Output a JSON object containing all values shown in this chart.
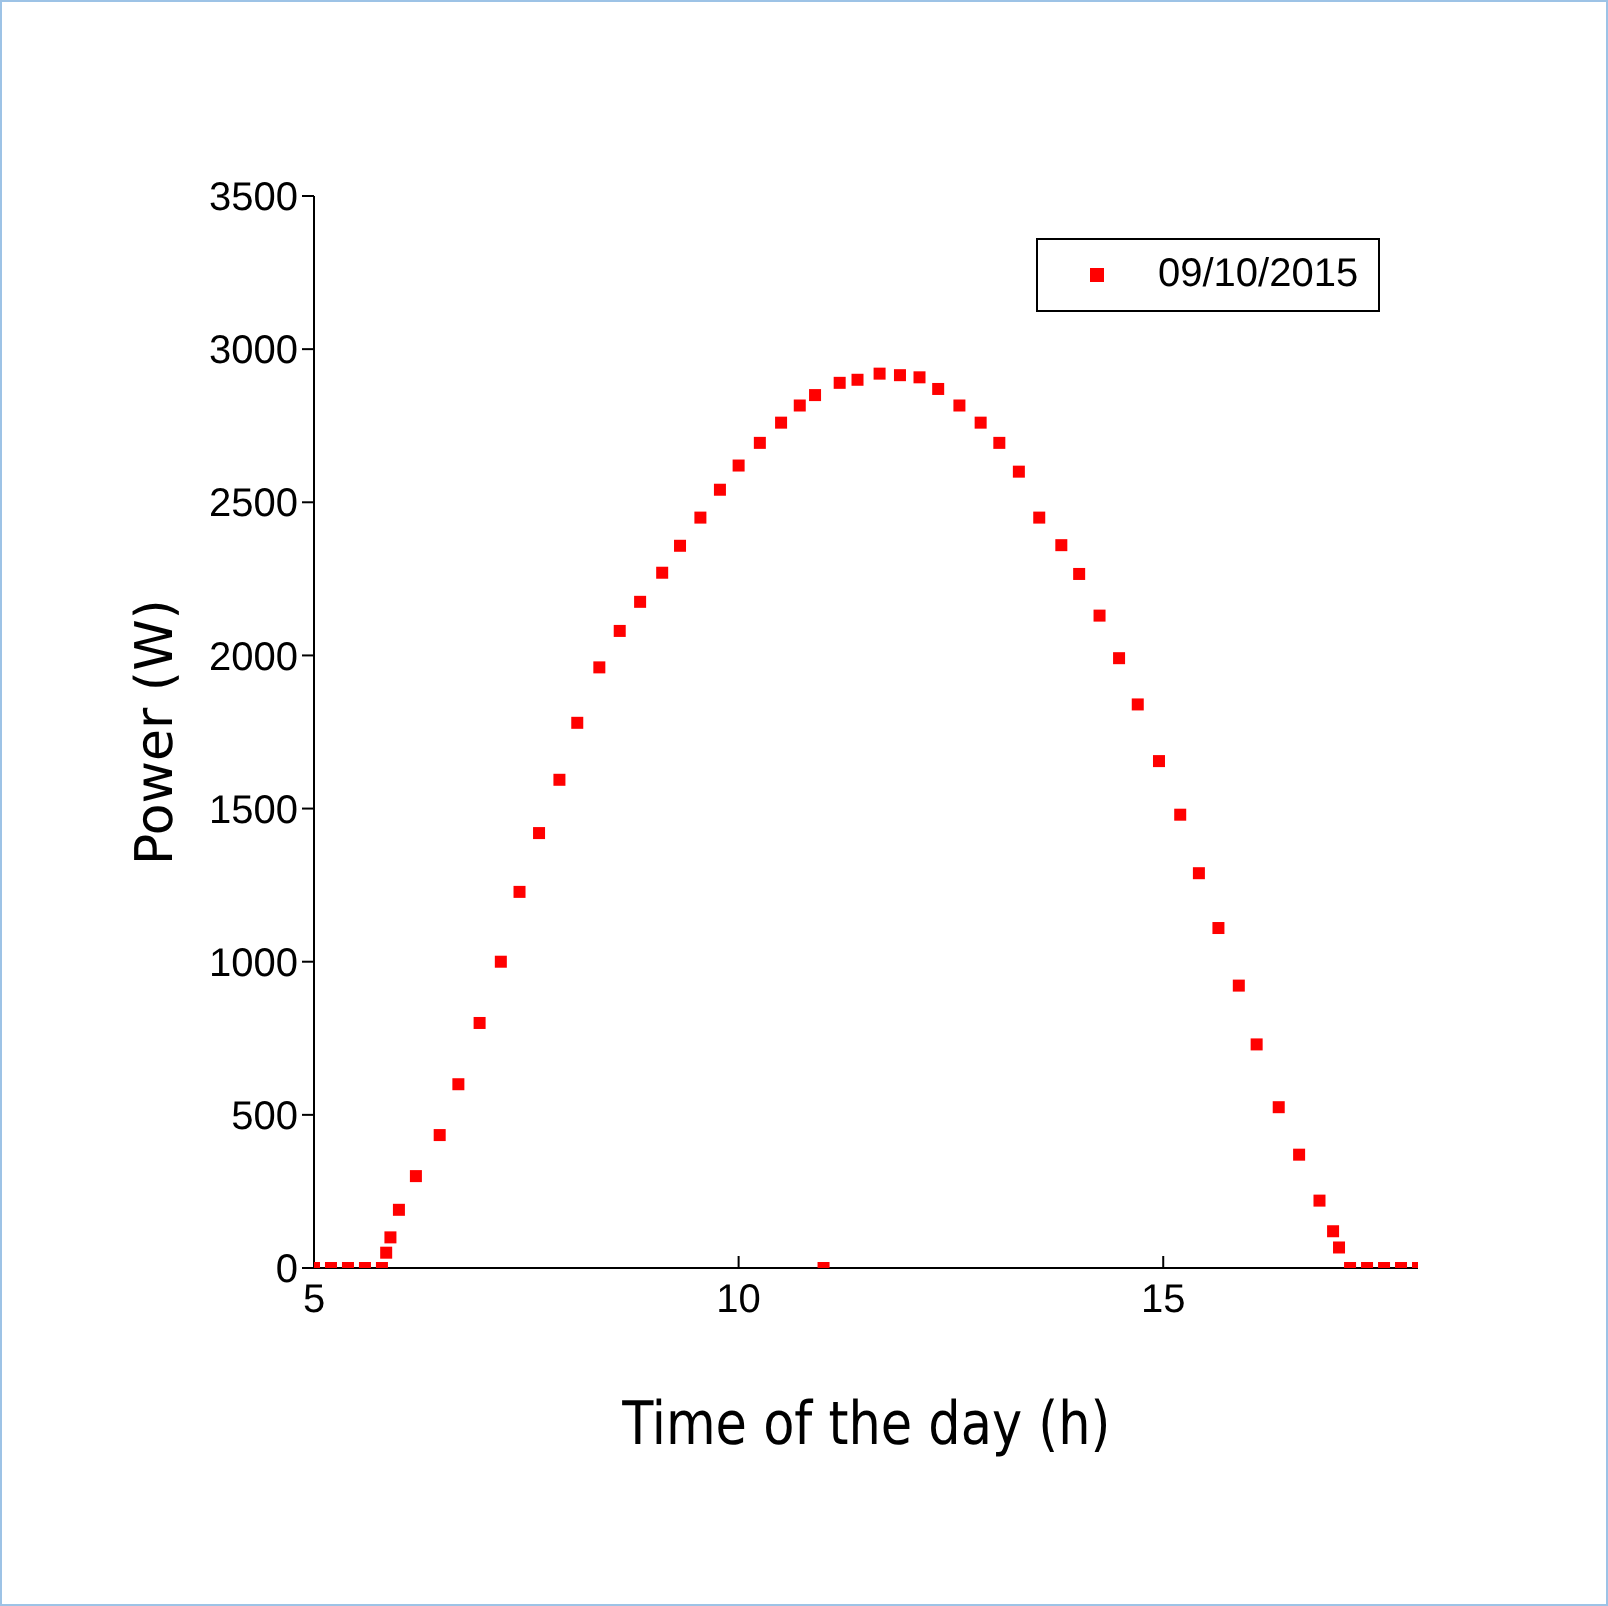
{
  "chart_data": {
    "type": "scatter",
    "xlabel": "Time of the day (h)",
    "ylabel": "Power (W)",
    "xlim": [
      5,
      18
    ],
    "xticks": [
      5,
      10,
      15
    ],
    "ylim": [
      0,
      3500
    ],
    "yticks": [
      0,
      500,
      1000,
      1500,
      2000,
      2500,
      3000,
      3500
    ],
    "grid": false,
    "legend": "top right",
    "marker": "square",
    "series": [
      {
        "name": "09/10/2015",
        "color": "#ff0000",
        "x": [
          5.0,
          5.2,
          5.4,
          5.6,
          5.8,
          5.85,
          5.9,
          6.0,
          6.2,
          6.48,
          6.7,
          6.95,
          7.2,
          7.42,
          7.65,
          7.89,
          8.1,
          8.36,
          8.6,
          8.84,
          9.1,
          9.31,
          9.55,
          9.78,
          10.0,
          10.25,
          10.5,
          10.72,
          10.9,
          11.0,
          11.19,
          11.4,
          11.66,
          11.9,
          12.13,
          12.35,
          12.6,
          12.85,
          13.07,
          13.3,
          13.54,
          13.8,
          14.01,
          14.25,
          14.48,
          14.7,
          14.95,
          15.2,
          15.42,
          15.65,
          15.89,
          16.1,
          16.36,
          16.6,
          16.84,
          17.0,
          17.07,
          17.2,
          17.4,
          17.6,
          17.8,
          18.0
        ],
        "values": [
          0,
          0,
          0,
          0,
          0,
          50,
          100,
          190,
          300,
          434,
          600,
          800,
          1000,
          1228,
          1420,
          1594,
          1780,
          1961,
          2080,
          2175,
          2270,
          2358,
          2450,
          2541,
          2620,
          2694,
          2760,
          2816,
          2850,
          0,
          2890,
          2900,
          2920,
          2915,
          2908,
          2870,
          2816,
          2760,
          2694,
          2600,
          2450,
          2360,
          2266,
          2130,
          1991,
          1840,
          1655,
          1480,
          1289,
          1110,
          922,
          730,
          525,
          370,
          220,
          120,
          67,
          0,
          0,
          0,
          0,
          0
        ]
      }
    ]
  }
}
